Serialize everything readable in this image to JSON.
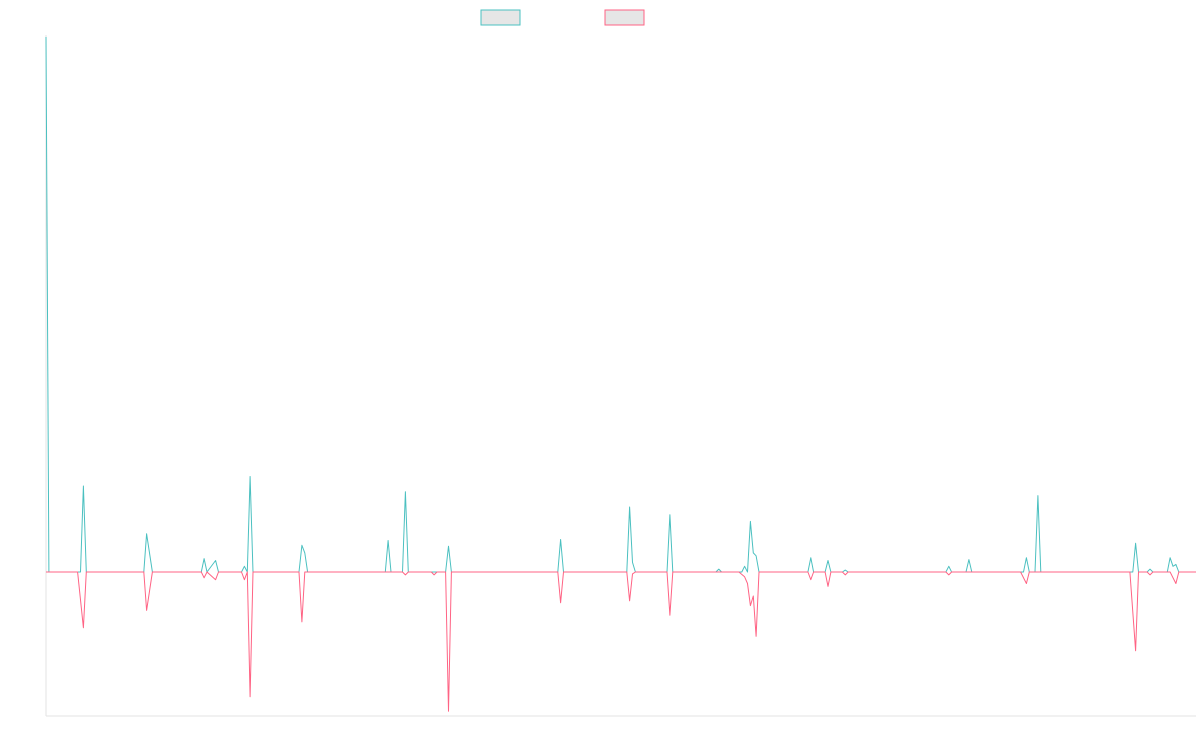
{
  "chart_data": {
    "type": "line",
    "title": "",
    "xlabel": "",
    "ylabel": "",
    "legend_position": "top-center",
    "grid": false,
    "ylim": [
      -150,
      560
    ],
    "xlim": [
      0,
      200
    ],
    "series": [
      {
        "name": "",
        "color": "#4bc0c0",
        "fill": "#e6e6e6",
        "points": [
          [
            0,
            560
          ],
          [
            0.5,
            0
          ],
          [
            6,
            0
          ],
          [
            6.5,
            90
          ],
          [
            7,
            0
          ],
          [
            17,
            0
          ],
          [
            17.5,
            40
          ],
          [
            18.5,
            0
          ],
          [
            27,
            0
          ],
          [
            27.5,
            14
          ],
          [
            28,
            0
          ],
          [
            29.5,
            12
          ],
          [
            30,
            0
          ],
          [
            34,
            0
          ],
          [
            34.5,
            6
          ],
          [
            35,
            0
          ],
          [
            35.5,
            100
          ],
          [
            36,
            0
          ],
          [
            44,
            0
          ],
          [
            44.5,
            28
          ],
          [
            45,
            20
          ],
          [
            45.5,
            0
          ],
          [
            59,
            0
          ],
          [
            59.5,
            33
          ],
          [
            60,
            0
          ],
          [
            62,
            0
          ],
          [
            62.5,
            84
          ],
          [
            63,
            0
          ],
          [
            69.5,
            0
          ],
          [
            70,
            27
          ],
          [
            70.5,
            0
          ],
          [
            89,
            0
          ],
          [
            89.5,
            34
          ],
          [
            90,
            0
          ],
          [
            101,
            0
          ],
          [
            101.5,
            68
          ],
          [
            102,
            10
          ],
          [
            102.5,
            0
          ],
          [
            108,
            0
          ],
          [
            108.5,
            60
          ],
          [
            109,
            0
          ],
          [
            116.5,
            0
          ],
          [
            117,
            3
          ],
          [
            117.5,
            0
          ],
          [
            121,
            0
          ],
          [
            121.5,
            6
          ],
          [
            122,
            0
          ],
          [
            122.5,
            53
          ],
          [
            123,
            20
          ],
          [
            123.5,
            17
          ],
          [
            124,
            0
          ],
          [
            132.5,
            0
          ],
          [
            133,
            15
          ],
          [
            133.5,
            0
          ],
          [
            135.5,
            0
          ],
          [
            136,
            12
          ],
          [
            136.5,
            0
          ],
          [
            138.5,
            0
          ],
          [
            139,
            2
          ],
          [
            139.5,
            0
          ],
          [
            156.5,
            0
          ],
          [
            157,
            6
          ],
          [
            157.5,
            0
          ],
          [
            160,
            0
          ],
          [
            160.5,
            13
          ],
          [
            161,
            0
          ],
          [
            170,
            0
          ],
          [
            170.5,
            15
          ],
          [
            171,
            0
          ],
          [
            172,
            0
          ],
          [
            172.5,
            80
          ],
          [
            173,
            0
          ],
          [
            189,
            0
          ],
          [
            189.5,
            30
          ],
          [
            190,
            0
          ],
          [
            191.5,
            0
          ],
          [
            192,
            3
          ],
          [
            192.5,
            0
          ],
          [
            195,
            0
          ],
          [
            195.5,
            15
          ],
          [
            196,
            6
          ],
          [
            196.5,
            8
          ],
          [
            197,
            0
          ],
          [
            200,
            0
          ]
        ]
      },
      {
        "name": "",
        "color": "#ff6384",
        "fill": "#e6e6e6",
        "points": [
          [
            0,
            0
          ],
          [
            5.5,
            0
          ],
          [
            6.5,
            -58
          ],
          [
            7,
            0
          ],
          [
            17,
            0
          ],
          [
            17.5,
            -40
          ],
          [
            18.5,
            0
          ],
          [
            27,
            0
          ],
          [
            27.5,
            -6
          ],
          [
            28,
            0
          ],
          [
            29.5,
            -8
          ],
          [
            30,
            0
          ],
          [
            34,
            0
          ],
          [
            34.5,
            -8
          ],
          [
            35,
            0
          ],
          [
            35.5,
            -130
          ],
          [
            36,
            0
          ],
          [
            44,
            0
          ],
          [
            44.5,
            -52
          ],
          [
            45,
            0
          ],
          [
            62,
            0
          ],
          [
            62.5,
            -3
          ],
          [
            63,
            0
          ],
          [
            67,
            0
          ],
          [
            67.5,
            -3
          ],
          [
            68,
            0
          ],
          [
            69.5,
            0
          ],
          [
            70,
            -145
          ],
          [
            70.5,
            0
          ],
          [
            89,
            0
          ],
          [
            89.5,
            -32
          ],
          [
            90,
            0
          ],
          [
            101,
            0
          ],
          [
            101.5,
            -30
          ],
          [
            102,
            -2
          ],
          [
            102.5,
            0
          ],
          [
            108,
            0
          ],
          [
            108.5,
            -45
          ],
          [
            109,
            0
          ],
          [
            120.5,
            0
          ],
          [
            121.5,
            -5
          ],
          [
            122,
            -12
          ],
          [
            122.5,
            -35
          ],
          [
            123,
            -25
          ],
          [
            123.5,
            -67
          ],
          [
            124,
            0
          ],
          [
            132.5,
            0
          ],
          [
            133,
            -8
          ],
          [
            133.5,
            0
          ],
          [
            135.5,
            0
          ],
          [
            136,
            -15
          ],
          [
            136.5,
            0
          ],
          [
            138.5,
            0
          ],
          [
            139,
            -3
          ],
          [
            139.5,
            0
          ],
          [
            156.5,
            0
          ],
          [
            157,
            -3
          ],
          [
            157.5,
            0
          ],
          [
            169.5,
            0
          ],
          [
            170.5,
            -12
          ],
          [
            171,
            0
          ],
          [
            188.5,
            0
          ],
          [
            189.5,
            -82
          ],
          [
            190,
            0
          ],
          [
            191.5,
            0
          ],
          [
            192,
            -3
          ],
          [
            192.5,
            0
          ],
          [
            195.5,
            0
          ],
          [
            196.5,
            -12
          ],
          [
            197,
            0
          ],
          [
            200,
            0
          ]
        ]
      }
    ]
  }
}
